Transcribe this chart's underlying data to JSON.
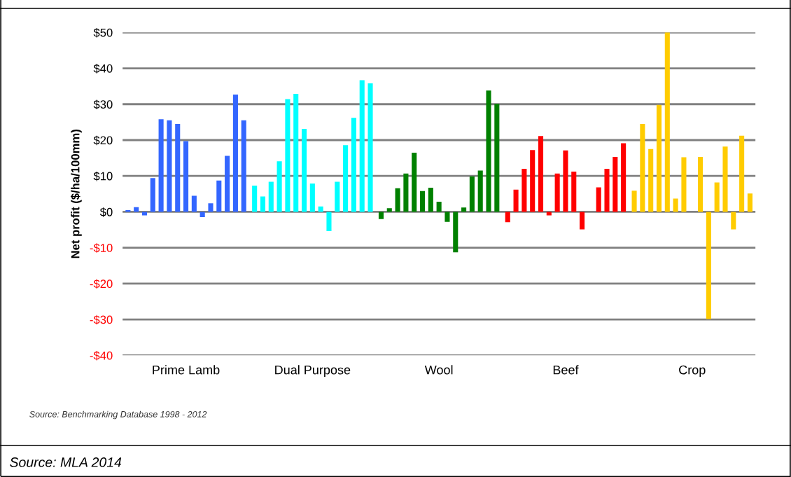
{
  "chart_data": {
    "type": "bar",
    "ylabel": "Net profit ($/ha/100mm)",
    "categories": [
      "Prime Lamb",
      "Dual Purpose",
      "Wool",
      "Beef",
      "Crop"
    ],
    "series": [
      {
        "colors": [
          "#3366ff",
          "#00ffff",
          "#008000",
          "#ff0000",
          "#ffcc00"
        ],
        "values": [
          0.5,
          7.3,
          -2,
          -2.9,
          5.9
        ]
      },
      {
        "colors": [
          "#3366ff",
          "#00ffff",
          "#008000",
          "#ff0000",
          "#ffcc00"
        ],
        "values": [
          1.3,
          4.3,
          1,
          6.2,
          24.5
        ]
      },
      {
        "colors": [
          "#3366ff",
          "#00ffff",
          "#008000",
          "#ff0000",
          "#ffcc00"
        ],
        "values": [
          -1,
          8.4,
          6.6,
          12,
          17.5
        ]
      },
      {
        "colors": [
          "#3366ff",
          "#00ffff",
          "#008000",
          "#ff0000",
          "#ffcc00"
        ],
        "values": [
          9.4,
          14.1,
          10.7,
          17.2,
          29.8
        ]
      },
      {
        "colors": [
          "#3366ff",
          "#00ffff",
          "#008000",
          "#ff0000",
          "#ffcc00"
        ],
        "values": [
          25.8,
          31.4,
          16.5,
          21.1,
          50
        ]
      },
      {
        "colors": [
          "#3366ff",
          "#00ffff",
          "#008000",
          "#ff0000",
          "#ffcc00"
        ],
        "values": [
          25.5,
          32.9,
          5.8,
          -1,
          3.7
        ]
      },
      {
        "colors": [
          "#3366ff",
          "#00ffff",
          "#008000",
          "#ff0000",
          "#ffcc00"
        ],
        "values": [
          24.5,
          23.1,
          6.7,
          10.7,
          15.2
        ]
      },
      {
        "colors": [
          "#3366ff",
          "#00ffff",
          "#008000",
          "#ff0000",
          "#ffcc00"
        ],
        "values": [
          19.7,
          7.9,
          2.8,
          17.1,
          0
        ]
      },
      {
        "colors": [
          "#3366ff",
          "#00ffff",
          "#008000",
          "#ff0000",
          "#ffcc00"
        ],
        "values": [
          4.5,
          1.5,
          -2.8,
          11.2,
          15.3
        ]
      },
      {
        "colors": [
          "#3366ff",
          "#00ffff",
          "#008000",
          "#ff0000",
          "#ffcc00"
        ],
        "values": [
          -1.5,
          -5.4,
          -11.3,
          -4.9,
          -29.9
        ]
      },
      {
        "colors": [
          "#3366ff",
          "#00ffff",
          "#008000",
          "#ff0000",
          "#ffcc00"
        ],
        "values": [
          2.4,
          8.4,
          1.2,
          0,
          8.2
        ]
      },
      {
        "colors": [
          "#3366ff",
          "#00ffff",
          "#008000",
          "#ff0000",
          "#ffcc00"
        ],
        "values": [
          8.7,
          18.6,
          9.9,
          6.8,
          18.2
        ]
      },
      {
        "colors": [
          "#3366ff",
          "#00ffff",
          "#008000",
          "#ff0000",
          "#ffcc00"
        ],
        "values": [
          15.6,
          26.2,
          11.5,
          12,
          -4.9
        ]
      },
      {
        "colors": [
          "#3366ff",
          "#00ffff",
          "#008000",
          "#ff0000",
          "#ffcc00"
        ],
        "values": [
          32.7,
          36.7,
          33.8,
          15.3,
          21.2
        ]
      },
      {
        "colors": [
          "#3366ff",
          "#00ffff",
          "#008000",
          "#ff0000",
          "#ffcc00"
        ],
        "values": [
          25.5,
          35.8,
          30.1,
          19.1,
          5.1
        ]
      }
    ],
    "ylim": [
      -40,
      50
    ],
    "yticks": [
      {
        "value": -40,
        "label": "-$40"
      },
      {
        "value": -30,
        "label": "-$30"
      },
      {
        "value": -20,
        "label": "-$20"
      },
      {
        "value": -10,
        "label": "-$10"
      },
      {
        "value": 0,
        "label": "$0"
      },
      {
        "value": 10,
        "label": "$10"
      },
      {
        "value": 20,
        "label": "$20"
      },
      {
        "value": 30,
        "label": "$30"
      },
      {
        "value": 40,
        "label": "$40"
      },
      {
        "value": 50,
        "label": "$50"
      }
    ],
    "grid": "y",
    "annotations": [
      "Source: Benchmarking Database 1998 - 2012",
      "Source: MLA 2014"
    ]
  }
}
